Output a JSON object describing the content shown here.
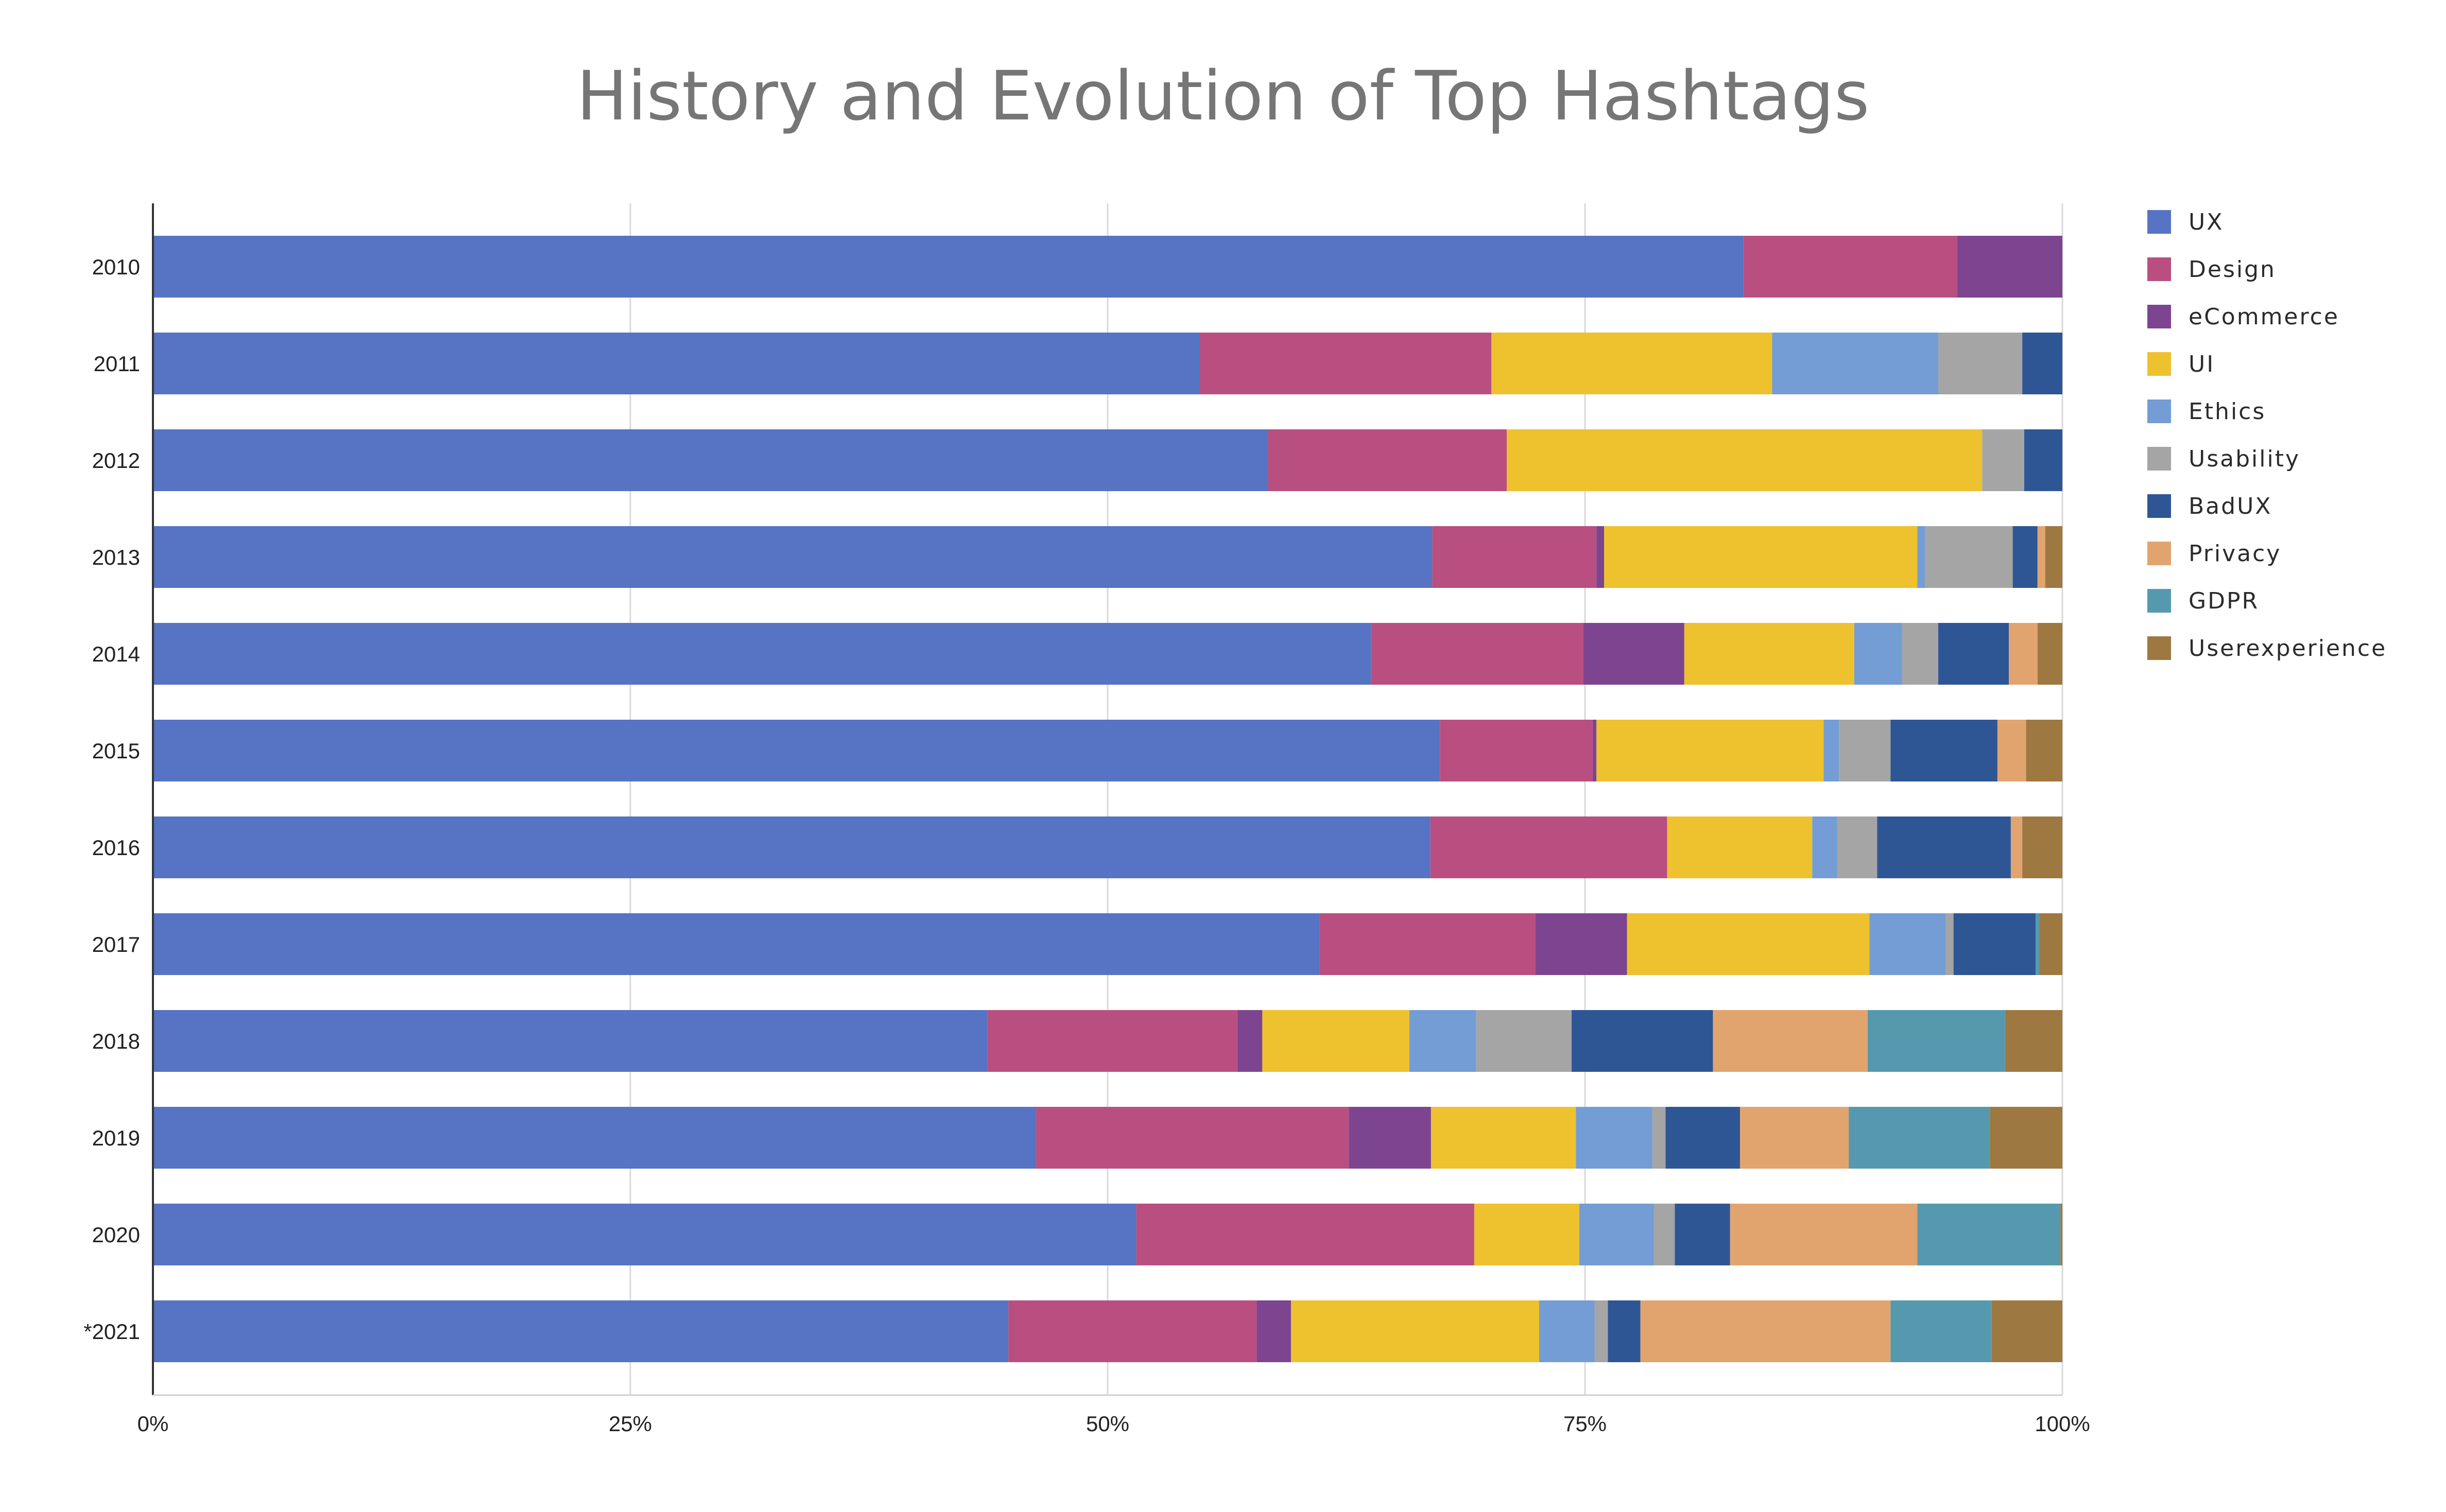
{
  "chart_data": {
    "type": "bar",
    "orientation": "horizontal",
    "stacked": "percent",
    "title": "History and Evolution of Top Hashtags",
    "xlabel": "",
    "ylabel": "",
    "xlim": [
      0,
      100
    ],
    "x_ticks": [
      "0%",
      "25%",
      "50%",
      "75%",
      "100%"
    ],
    "grid": true,
    "legend_position": "right",
    "categories": [
      "2010",
      "2011",
      "2012",
      "2013",
      "2014",
      "2015",
      "2016",
      "2017",
      "2018",
      "2019",
      "2020",
      "*2021"
    ],
    "series": [
      {
        "name": "UX",
        "color": "#5673c4",
        "values": [
          83.3,
          54.8,
          58.4,
          67.0,
          63.8,
          67.4,
          66.9,
          61.1,
          43.7,
          46.3,
          51.5,
          44.8
        ]
      },
      {
        "name": "Design",
        "color": "#b94f81",
        "values": [
          11.2,
          15.3,
          12.5,
          8.6,
          11.1,
          8.0,
          12.4,
          11.3,
          13.1,
          16.4,
          17.7,
          13.0
        ]
      },
      {
        "name": "eCommerce",
        "color": "#7d4490",
        "values": [
          5.5,
          0,
          0,
          0.4,
          5.3,
          0.2,
          0,
          4.8,
          1.3,
          4.3,
          0,
          1.8
        ]
      },
      {
        "name": "UI",
        "color": "#eec12f",
        "values": [
          0,
          14.7,
          24.9,
          16.4,
          8.9,
          11.9,
          7.6,
          12.7,
          7.7,
          7.6,
          5.5,
          13.0
        ]
      },
      {
        "name": "Ethics",
        "color": "#739dd4",
        "values": [
          0,
          8.7,
          0,
          0.4,
          2.5,
          0.8,
          1.3,
          4.0,
          3.5,
          4.0,
          3.9,
          2.9
        ]
      },
      {
        "name": "Usability",
        "color": "#a5a5a5",
        "values": [
          0,
          4.4,
          2.2,
          4.6,
          1.9,
          2.7,
          2.1,
          0.4,
          5.0,
          0.7,
          1.1,
          0.7
        ]
      },
      {
        "name": "BadUX",
        "color": "#2f5694",
        "values": [
          0,
          2.1,
          2.0,
          1.3,
          3.7,
          5.6,
          7.0,
          4.3,
          7.4,
          3.9,
          2.9,
          1.7
        ]
      },
      {
        "name": "Privacy",
        "color": "#e2a46f",
        "values": [
          0,
          0,
          0,
          0.4,
          1.5,
          1.5,
          0.6,
          0,
          8.1,
          5.7,
          9.8,
          13.1
        ]
      },
      {
        "name": "GDPR",
        "color": "#5699ae",
        "values": [
          0,
          0,
          0,
          0,
          0,
          0,
          0,
          0.2,
          7.2,
          7.4,
          7.5,
          5.3
        ]
      },
      {
        "name": "Userexperience",
        "color": "#9d7841",
        "values": [
          0,
          0,
          0,
          0.9,
          1.3,
          1.9,
          2.1,
          1.2,
          3.0,
          3.8,
          0.1,
          3.7
        ]
      }
    ]
  }
}
